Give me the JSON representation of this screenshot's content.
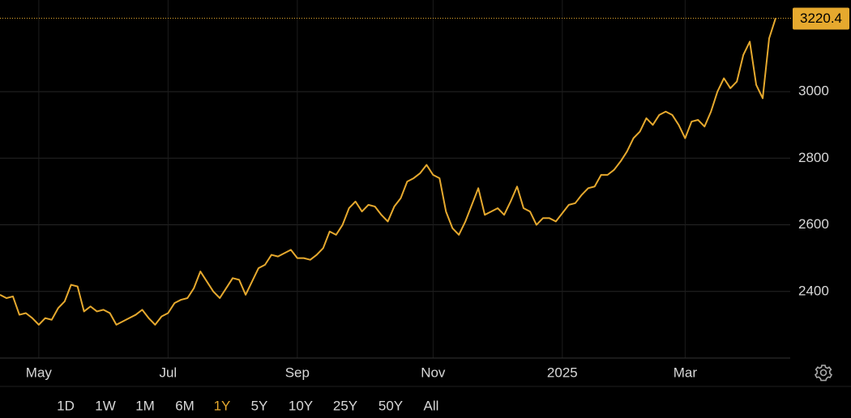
{
  "chart_data": {
    "type": "line",
    "categories": [
      null,
      null,
      null,
      null,
      null,
      null,
      "May",
      null,
      null,
      null,
      null,
      null,
      null,
      null,
      null,
      null,
      null,
      null,
      null,
      null,
      null,
      null,
      null,
      null,
      null,
      null,
      "Jul",
      null,
      null,
      null,
      null,
      null,
      null,
      null,
      null,
      null,
      null,
      null,
      null,
      null,
      null,
      null,
      null,
      null,
      null,
      null,
      "Sep",
      null,
      null,
      null,
      null,
      null,
      null,
      null,
      null,
      null,
      null,
      null,
      null,
      null,
      null,
      null,
      null,
      null,
      null,
      null,
      null,
      "Nov",
      null,
      null,
      null,
      null,
      null,
      null,
      null,
      null,
      null,
      null,
      null,
      null,
      null,
      null,
      null,
      null,
      null,
      null,
      null,
      "2025",
      null,
      null,
      null,
      null,
      null,
      null,
      null,
      null,
      null,
      null,
      null,
      null,
      null,
      null,
      null,
      null,
      null,
      null,
      "Mar",
      null,
      null,
      null,
      null,
      null,
      null,
      null,
      null,
      null,
      null,
      null,
      null,
      null,
      null
    ],
    "series": [
      {
        "color": "#e6a92e",
        "values": [
          2390,
          2380,
          2385,
          2330,
          2335,
          2320,
          2300,
          2320,
          2315,
          2350,
          2370,
          2420,
          2415,
          2340,
          2355,
          2340,
          2345,
          2335,
          2300,
          2310,
          2320,
          2330,
          2345,
          2320,
          2300,
          2325,
          2335,
          2365,
          2375,
          2380,
          2410,
          2460,
          2430,
          2400,
          2380,
          2410,
          2440,
          2435,
          2390,
          2430,
          2470,
          2480,
          2510,
          2505,
          2515,
          2525,
          2500,
          2500,
          2495,
          2510,
          2530,
          2580,
          2570,
          2600,
          2650,
          2670,
          2640,
          2660,
          2655,
          2630,
          2610,
          2655,
          2680,
          2730,
          2740,
          2755,
          2780,
          2750,
          2740,
          2640,
          2590,
          2570,
          2610,
          2660,
          2710,
          2630,
          2640,
          2650,
          2630,
          2670,
          2715,
          2650,
          2640,
          2600,
          2620,
          2620,
          2610,
          2635,
          2660,
          2665,
          2690,
          2710,
          2715,
          2750,
          2750,
          2765,
          2790,
          2820,
          2860,
          2880,
          2920,
          2900,
          2930,
          2940,
          2930,
          2900,
          2860,
          2910,
          2915,
          2895,
          2940,
          3000,
          3040,
          3010,
          3030,
          3110,
          3150,
          3020,
          2980,
          3160,
          3220.4
        ]
      }
    ],
    "ylim": [
      2200,
      3275
    ],
    "yticks": [
      2400,
      2600,
      2800,
      3000
    ],
    "grid": true,
    "range_buttons": [
      "1D",
      "1W",
      "1M",
      "6M",
      "1Y",
      "5Y",
      "10Y",
      "25Y",
      "50Y",
      "All"
    ],
    "selected_range": "1Y"
  }
}
